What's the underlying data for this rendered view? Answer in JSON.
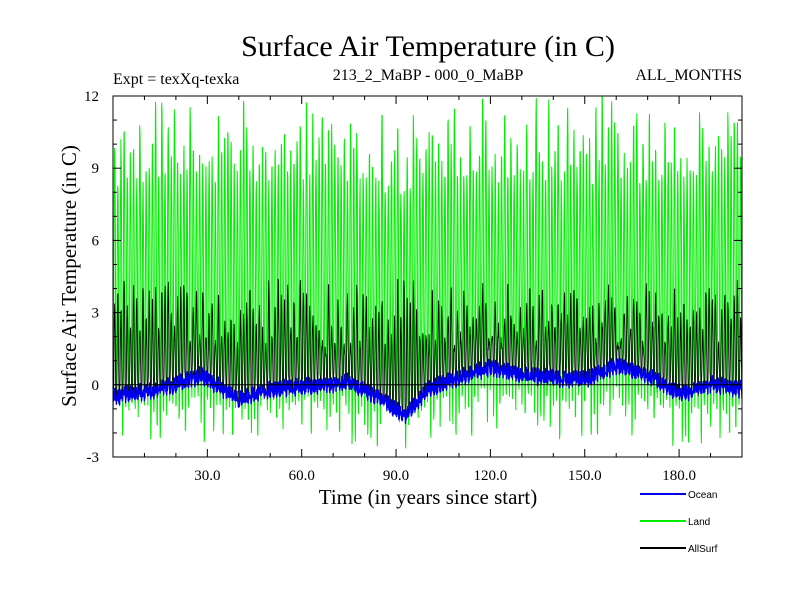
{
  "chart_data": {
    "type": "line",
    "title": "Surface Air Temperature (in C)",
    "subtitle_left": "Expt = texXq-texka",
    "subtitle_center": "213_2_MaBP - 000_0_MaBP",
    "subtitle_right": "ALL_MONTHS",
    "xlabel": "Time (in years since start)",
    "ylabel": "Surface Air Temperature (in C)",
    "xlim": [
      0,
      200
    ],
    "ylim": [
      -3,
      12
    ],
    "x_ticks": [
      30,
      60,
      90,
      120,
      150,
      180
    ],
    "x_tick_labels": [
      "30.0",
      "60.0",
      "90.0",
      "120.0",
      "150.0",
      "180.0"
    ],
    "y_ticks": [
      -3,
      0,
      3,
      6,
      9,
      12
    ],
    "y_tick_labels": [
      "-3",
      "0",
      "3",
      "6",
      "9",
      "12"
    ],
    "reference_line_y": 0,
    "samples_per_year": 12,
    "series": [
      {
        "name": "Land",
        "color": "#00ee00",
        "description": "monthly values, seasonal cycle with peaks ~9-11.5 and troughs ~-1 to -2.5",
        "annual_peak_range": [
          8.5,
          11.9
        ],
        "annual_trough_range": [
          -2.5,
          -0.6
        ]
      },
      {
        "name": "AllSurf",
        "color": "#000000",
        "description": "monthly values, seasonal cycle with peaks ~2-4 and troughs near -1",
        "annual_peak_range": [
          1.5,
          4.0
        ]
      },
      {
        "name": "Ocean",
        "color": "#0000ee",
        "description": "monthly values near 0 with slow multi-decadal variability",
        "key_points": {
          "x": [
            0,
            15,
            28,
            40,
            50,
            60,
            75,
            85,
            93,
            100,
            110,
            120,
            130,
            140,
            150,
            160,
            170,
            180,
            190,
            200
          ],
          "y": [
            -0.5,
            -0.2,
            0.4,
            -0.6,
            -0.2,
            -0.1,
            0.1,
            -0.6,
            -1.3,
            -0.2,
            0.3,
            0.7,
            0.4,
            0.3,
            0.2,
            0.8,
            0.4,
            -0.4,
            0.0,
            -0.2
          ]
        }
      }
    ],
    "legend": {
      "placement": "bottom-right",
      "items": [
        {
          "name": "Ocean",
          "color": "#0000ee"
        },
        {
          "name": "Land",
          "color": "#00ee00"
        },
        {
          "name": "AllSurf",
          "color": "#000000"
        }
      ]
    }
  }
}
